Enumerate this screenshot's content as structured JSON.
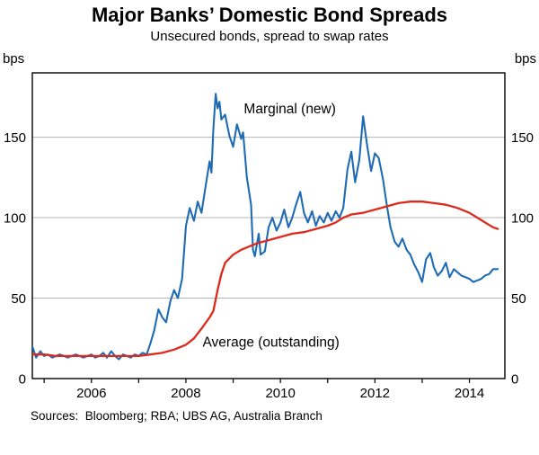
{
  "header": {
    "title": "Major Banks’ Domestic Bond Spreads",
    "subtitle": "Unsecured bonds, spread to swap rates"
  },
  "footer": {
    "sources": "Sources:  Bloomberg; RBA; UBS AG, Australia Branch"
  },
  "chart_data": {
    "type": "line",
    "title": "Major Banks’ Domestic Bond Spreads",
    "subtitle": "Unsecured bonds, spread to swap rates",
    "unit_left": "bps",
    "unit_right": "bps",
    "axes": {
      "xlim": [
        2004.75,
        2014.75
      ],
      "ylim": [
        0,
        190
      ],
      "y_ticks": [
        0,
        50,
        100,
        150
      ],
      "y_gridlines": [
        50,
        100,
        150
      ],
      "x_ticks": [
        2005,
        2006,
        2007,
        2008,
        2009,
        2010,
        2011,
        2012,
        2013,
        2014
      ],
      "x_label_years": [
        "2006",
        "2008",
        "2010",
        "2012",
        "2014"
      ],
      "grid": true,
      "border_color": "#000000",
      "gridline_color": "#b5b5b5"
    },
    "series": [
      {
        "name": "Marginal (new)",
        "color": "#1f6cb5",
        "width": 2.1,
        "points": [
          [
            2004.75,
            20
          ],
          [
            2004.83,
            13
          ],
          [
            2004.92,
            17
          ],
          [
            2005.0,
            14
          ],
          [
            2005.08,
            15
          ],
          [
            2005.17,
            13
          ],
          [
            2005.25,
            14
          ],
          [
            2005.33,
            15
          ],
          [
            2005.42,
            14
          ],
          [
            2005.5,
            13
          ],
          [
            2005.58,
            14
          ],
          [
            2005.67,
            15
          ],
          [
            2005.75,
            14
          ],
          [
            2005.83,
            13
          ],
          [
            2005.92,
            14
          ],
          [
            2006.0,
            15
          ],
          [
            2006.08,
            13
          ],
          [
            2006.17,
            14
          ],
          [
            2006.25,
            16
          ],
          [
            2006.33,
            13
          ],
          [
            2006.42,
            17
          ],
          [
            2006.5,
            14
          ],
          [
            2006.58,
            12
          ],
          [
            2006.67,
            15
          ],
          [
            2006.75,
            14
          ],
          [
            2006.83,
            13
          ],
          [
            2006.92,
            15
          ],
          [
            2007.0,
            14
          ],
          [
            2007.08,
            16
          ],
          [
            2007.17,
            15
          ],
          [
            2007.25,
            22
          ],
          [
            2007.33,
            30
          ],
          [
            2007.42,
            43
          ],
          [
            2007.5,
            38
          ],
          [
            2007.58,
            35
          ],
          [
            2007.67,
            48
          ],
          [
            2007.75,
            55
          ],
          [
            2007.83,
            50
          ],
          [
            2007.92,
            62
          ],
          [
            2008.0,
            95
          ],
          [
            2008.08,
            106
          ],
          [
            2008.17,
            98
          ],
          [
            2008.25,
            110
          ],
          [
            2008.33,
            103
          ],
          [
            2008.42,
            120
          ],
          [
            2008.5,
            135
          ],
          [
            2008.54,
            128
          ],
          [
            2008.58,
            155
          ],
          [
            2008.63,
            177
          ],
          [
            2008.67,
            168
          ],
          [
            2008.71,
            172
          ],
          [
            2008.75,
            161
          ],
          [
            2008.83,
            164
          ],
          [
            2008.92,
            151
          ],
          [
            2009.0,
            144
          ],
          [
            2009.08,
            158
          ],
          [
            2009.17,
            149
          ],
          [
            2009.21,
            153
          ],
          [
            2009.29,
            125
          ],
          [
            2009.38,
            108
          ],
          [
            2009.42,
            80
          ],
          [
            2009.46,
            76
          ],
          [
            2009.54,
            90
          ],
          [
            2009.58,
            77
          ],
          [
            2009.67,
            79
          ],
          [
            2009.75,
            94
          ],
          [
            2009.83,
            100
          ],
          [
            2009.92,
            92
          ],
          [
            2010.0,
            97
          ],
          [
            2010.08,
            105
          ],
          [
            2010.17,
            94
          ],
          [
            2010.25,
            100
          ],
          [
            2010.33,
            108
          ],
          [
            2010.42,
            116
          ],
          [
            2010.5,
            103
          ],
          [
            2010.58,
            97
          ],
          [
            2010.67,
            104
          ],
          [
            2010.75,
            95
          ],
          [
            2010.83,
            101
          ],
          [
            2010.92,
            97
          ],
          [
            2011.0,
            103
          ],
          [
            2011.08,
            98
          ],
          [
            2011.17,
            104
          ],
          [
            2011.25,
            100
          ],
          [
            2011.33,
            106
          ],
          [
            2011.42,
            130
          ],
          [
            2011.5,
            141
          ],
          [
            2011.58,
            122
          ],
          [
            2011.67,
            136
          ],
          [
            2011.75,
            163
          ],
          [
            2011.83,
            146
          ],
          [
            2011.92,
            129
          ],
          [
            2012.0,
            140
          ],
          [
            2012.08,
            137
          ],
          [
            2012.17,
            124
          ],
          [
            2012.25,
            108
          ],
          [
            2012.33,
            94
          ],
          [
            2012.42,
            85
          ],
          [
            2012.5,
            82
          ],
          [
            2012.58,
            87
          ],
          [
            2012.67,
            80
          ],
          [
            2012.75,
            77
          ],
          [
            2012.83,
            71
          ],
          [
            2012.92,
            66
          ],
          [
            2013.0,
            60
          ],
          [
            2013.08,
            74
          ],
          [
            2013.17,
            78
          ],
          [
            2013.25,
            69
          ],
          [
            2013.33,
            64
          ],
          [
            2013.42,
            67
          ],
          [
            2013.5,
            72
          ],
          [
            2013.58,
            63
          ],
          [
            2013.67,
            68
          ],
          [
            2013.75,
            66
          ],
          [
            2013.83,
            64
          ],
          [
            2013.92,
            63
          ],
          [
            2014.0,
            62
          ],
          [
            2014.08,
            60
          ],
          [
            2014.17,
            61
          ],
          [
            2014.25,
            62
          ],
          [
            2014.33,
            64
          ],
          [
            2014.42,
            65
          ],
          [
            2014.5,
            68
          ],
          [
            2014.6,
            68
          ]
        ]
      },
      {
        "name": "Average (outstanding)",
        "color": "#dd2a1b",
        "width": 2.3,
        "points": [
          [
            2004.75,
            15
          ],
          [
            2005.0,
            15
          ],
          [
            2005.25,
            14
          ],
          [
            2005.5,
            14
          ],
          [
            2005.75,
            14
          ],
          [
            2006.0,
            14
          ],
          [
            2006.25,
            14
          ],
          [
            2006.5,
            14
          ],
          [
            2006.75,
            14
          ],
          [
            2007.0,
            14
          ],
          [
            2007.25,
            15
          ],
          [
            2007.5,
            16
          ],
          [
            2007.75,
            18
          ],
          [
            2008.0,
            21
          ],
          [
            2008.17,
            25
          ],
          [
            2008.33,
            31
          ],
          [
            2008.5,
            38
          ],
          [
            2008.58,
            42
          ],
          [
            2008.67,
            55
          ],
          [
            2008.75,
            65
          ],
          [
            2008.83,
            72
          ],
          [
            2009.0,
            77
          ],
          [
            2009.17,
            80
          ],
          [
            2009.33,
            82
          ],
          [
            2009.5,
            84
          ],
          [
            2009.75,
            86
          ],
          [
            2010.0,
            88
          ],
          [
            2010.25,
            90
          ],
          [
            2010.5,
            91
          ],
          [
            2010.75,
            93
          ],
          [
            2011.0,
            95
          ],
          [
            2011.17,
            97
          ],
          [
            2011.33,
            100
          ],
          [
            2011.5,
            102
          ],
          [
            2011.75,
            103
          ],
          [
            2012.0,
            105
          ],
          [
            2012.25,
            107
          ],
          [
            2012.5,
            109
          ],
          [
            2012.75,
            110
          ],
          [
            2013.0,
            110
          ],
          [
            2013.25,
            109
          ],
          [
            2013.5,
            108
          ],
          [
            2013.75,
            106
          ],
          [
            2014.0,
            103
          ],
          [
            2014.17,
            100
          ],
          [
            2014.33,
            97
          ],
          [
            2014.5,
            94
          ],
          [
            2014.6,
            93
          ]
        ]
      }
    ],
    "annotations": [
      {
        "text": "Marginal (new)",
        "x": 2010.2,
        "y": 168,
        "color": "#1f6cb5"
      },
      {
        "text": "Average (outstanding)",
        "x": 2009.8,
        "y": 23,
        "color": "#dd2a1b"
      }
    ],
    "legend_position": "inline-annotations"
  }
}
